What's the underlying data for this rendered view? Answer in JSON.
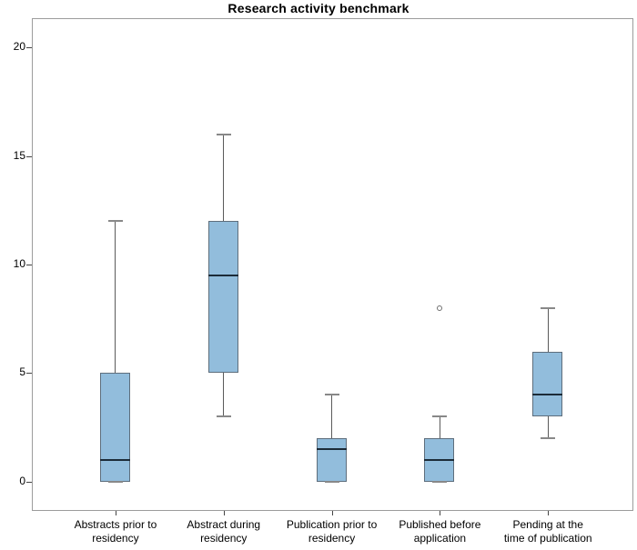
{
  "title": "Research activity benchmark",
  "colors": {
    "box_fill": "#92bddc",
    "box_border": "#5e6e7c",
    "median_line": "#1c2b38",
    "whisker": "#5a5a5a",
    "whisker_cap": "#888888",
    "frame": "#9c9c9c",
    "outlier": "#6e6e6e",
    "text": "#000000"
  },
  "chart_data": {
    "type": "boxplot",
    "title": "Research activity benchmark",
    "xlabel": "",
    "ylabel": "",
    "ylim": [
      -1.3,
      21.3
    ],
    "yticks": [
      0,
      5,
      10,
      15,
      20
    ],
    "grid": false,
    "legend": null,
    "categories": [
      "Abstracts prior to residency",
      "Abstract during residency",
      "Publication prior to residency",
      "Published before application",
      "Pending at the time of publication"
    ],
    "x_tick_labels": [
      [
        "Abstracts prior to",
        "residency"
      ],
      [
        "Abstract during",
        "residency"
      ],
      [
        "Publication prior to",
        "residency"
      ],
      [
        "Published before",
        "application"
      ],
      [
        "Pending at the",
        "time of publication"
      ]
    ],
    "series": [
      {
        "name": "Abstracts prior to residency",
        "min": 0,
        "q1": 0,
        "median": 1,
        "q3": 5,
        "max": 12,
        "outliers": []
      },
      {
        "name": "Abstract during residency",
        "min": 3,
        "q1": 5,
        "median": 9.5,
        "q3": 12,
        "max": 16,
        "outliers": []
      },
      {
        "name": "Publication prior to residency",
        "min": 0,
        "q1": 0,
        "median": 1.5,
        "q3": 2,
        "max": 4,
        "outliers": []
      },
      {
        "name": "Published before application",
        "min": 0,
        "q1": 0,
        "median": 1,
        "q3": 2,
        "max": 3,
        "outliers": [
          8
        ]
      },
      {
        "name": "Pending at the time of publication",
        "min": 2,
        "q1": 3,
        "median": 4,
        "q3": 6,
        "max": 8,
        "outliers": []
      }
    ]
  }
}
